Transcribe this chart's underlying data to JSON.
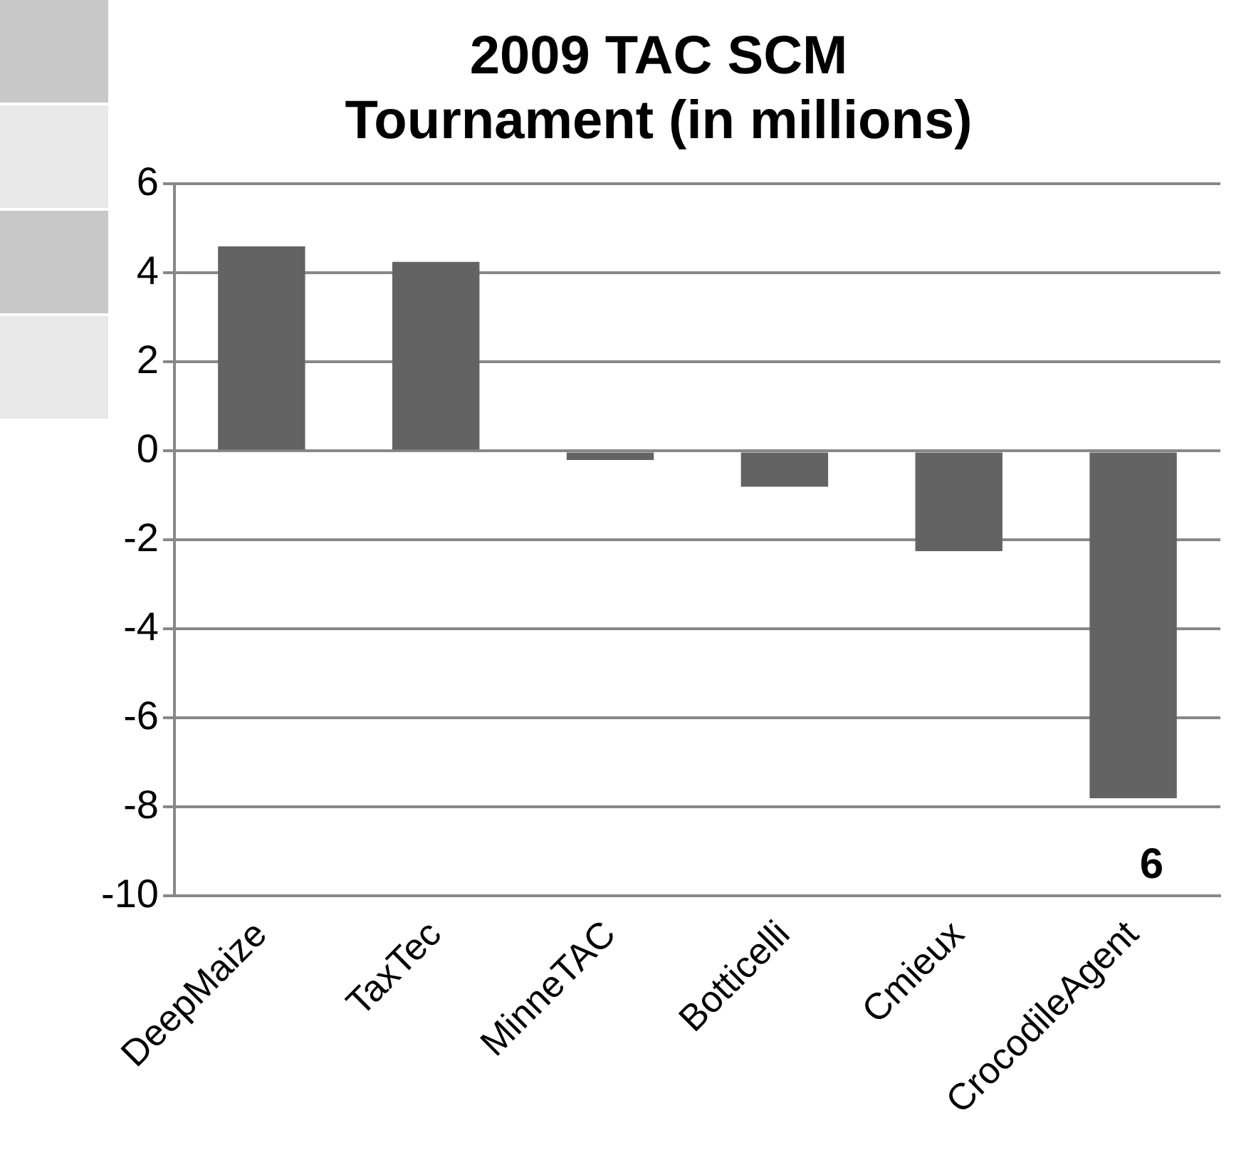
{
  "chart_data": {
    "type": "bar",
    "title": [
      "2009 TAC SCM",
      "Tournament (in millions)"
    ],
    "categories": [
      "DeepMaize",
      "TaxTec",
      "MinneTAC",
      "Botticelli",
      "Cmieux",
      "CrocodileAgent"
    ],
    "values": [
      4.6,
      4.25,
      -0.2,
      -0.8,
      -2.25,
      -7.8
    ],
    "color": "#636363",
    "ylim": [
      -10,
      6
    ],
    "yticks": [
      -10,
      -8,
      -6,
      -4,
      -2,
      0,
      2,
      4,
      6
    ],
    "grid": "y",
    "legend": false,
    "annotations": [
      "6"
    ]
  }
}
